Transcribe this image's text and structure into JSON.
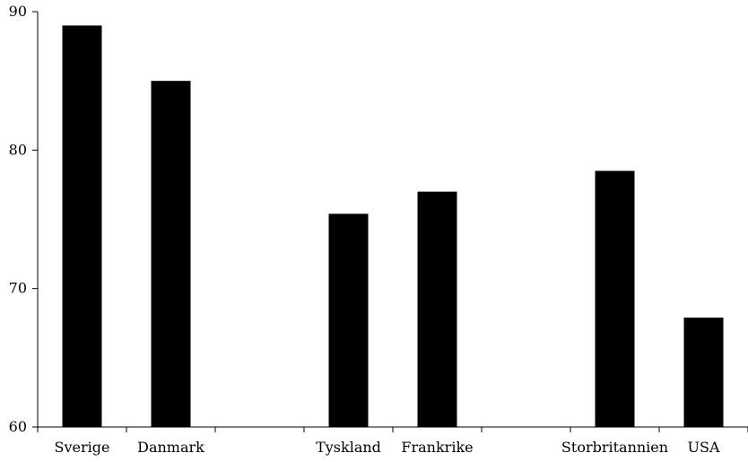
{
  "chart_data": {
    "type": "bar",
    "title": "",
    "xlabel": "",
    "ylabel": "",
    "ylim": [
      60,
      90
    ],
    "y_ticks": [
      60,
      70,
      80,
      90
    ],
    "categories": [
      "Sverige",
      "Danmark",
      "",
      "Tyskland",
      "Frankrike",
      "",
      "Storbritannien",
      "USA"
    ],
    "values": [
      89,
      85,
      null,
      75.4,
      77,
      null,
      78.5,
      67.9
    ],
    "grid": false,
    "legend": "none",
    "colors": {
      "bar": "#000000",
      "axis": "#000000",
      "background": "#ffffff"
    }
  }
}
